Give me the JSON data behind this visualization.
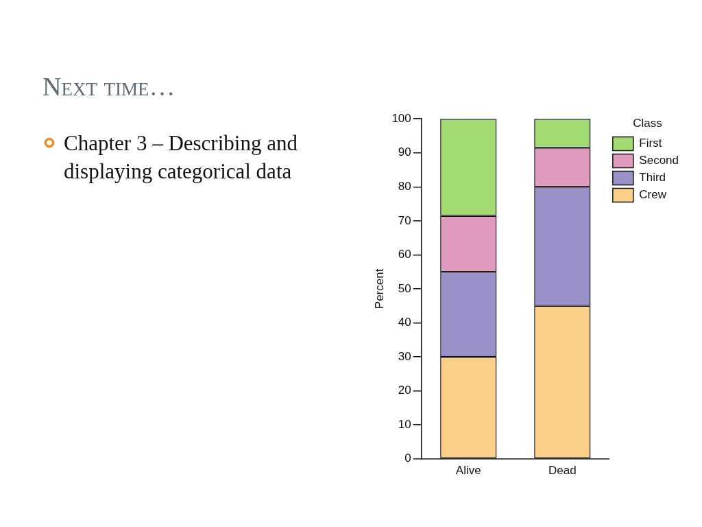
{
  "chart_data": {
    "type": "bar",
    "title": "Next time…",
    "ylabel": "Percent",
    "legend_title": "Class",
    "stacked": true,
    "legend": "top right",
    "grid": false,
    "annotations": [
      "Chapter 3 – Describing and displaying categorical data"
    ],
    "categories": [
      "Alive",
      "Dead"
    ],
    "ylim": [
      0,
      100
    ],
    "yticks": [
      0,
      10,
      20,
      30,
      40,
      50,
      60,
      70,
      80,
      90,
      100
    ],
    "series": [
      {
        "name": "Crew",
        "color": "#fdd089",
        "values": [
          30,
          45
        ]
      },
      {
        "name": "Third",
        "color": "#9b91c9",
        "values": [
          25,
          35
        ]
      },
      {
        "name": "Second",
        "color": "#e09abe",
        "values": [
          16.5,
          11.5
        ]
      },
      {
        "name": "First",
        "color": "#a3db73",
        "values": [
          28.5,
          8.5
        ]
      }
    ]
  }
}
